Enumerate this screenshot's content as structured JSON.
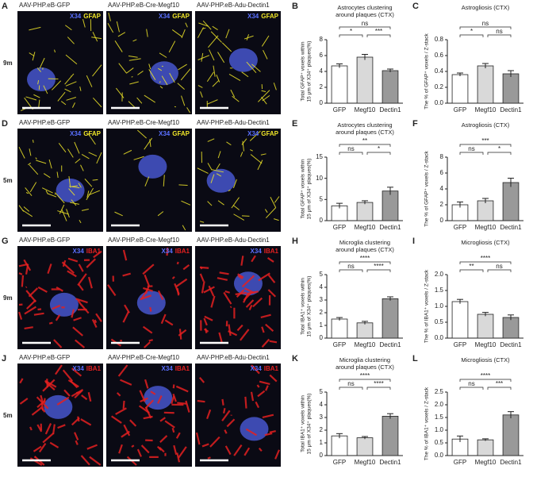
{
  "images": {
    "rows": [
      {
        "letter": "A",
        "age": "9m",
        "marker": "X34",
        "stain": "GFAP",
        "labels": [
          "AAV-PHP.eB-GFP",
          "AAV-PHP.eB-Cre-Megf10",
          "AAV-PHP.eB-Adu-Dectin1"
        ]
      },
      {
        "letter": "D",
        "age": "5m",
        "marker": "X34",
        "stain": "GFAP",
        "labels": [
          "AAV-PHP.eB-GFP",
          "AAV-PHP.eB-Cre-Megf10",
          "AAV-PHP.eB-Adu-Dectin1"
        ]
      },
      {
        "letter": "G",
        "age": "9m",
        "marker": "X34",
        "stain": "IBA1",
        "labels": [
          "AAV-PHP.eB-GFP",
          "AAV-PHP.eB-Cre-Megf10",
          "AAV-PHP.eB-Adu-Dectin1"
        ]
      },
      {
        "letter": "J",
        "age": "5m",
        "marker": "X34",
        "stain": "IBA1",
        "labels": [
          "AAV-PHP.eB-GFP",
          "AAV-PHP.eB-Cre-Megf10",
          "AAV-PHP.eB-Adu-Dectin1"
        ]
      }
    ]
  },
  "chart_data": [
    {
      "type": "bar",
      "letter": "B",
      "title": [
        "Astrocytes clustering",
        "around plaques (CTX)"
      ],
      "ylabel": [
        "Total GFAP⁺ voxels within",
        "15 μm of X34⁺ plaques(%)"
      ],
      "categories": [
        "GFP",
        "Megf10",
        "Dectin1"
      ],
      "values": [
        4.7,
        5.8,
        4.1
      ],
      "errors": [
        0.25,
        0.35,
        0.2
      ],
      "colors": [
        "#ffffff",
        "#d9d9d9",
        "#999999"
      ],
      "ylim": [
        0,
        8
      ],
      "yticks": [
        0,
        2,
        4,
        6,
        8
      ],
      "annotations": [
        "ns",
        "*",
        "***"
      ]
    },
    {
      "type": "bar",
      "letter": "C",
      "title": [
        "Astrogliosis (CTX)"
      ],
      "ylabel": [
        "The % of GFAP⁺ voxels / Z-stack"
      ],
      "categories": [
        "GFP",
        "Megf10",
        "Dectin1"
      ],
      "values": [
        0.36,
        0.47,
        0.37
      ],
      "errors": [
        0.02,
        0.03,
        0.04
      ],
      "colors": [
        "#ffffff",
        "#d9d9d9",
        "#999999"
      ],
      "ylim": [
        0,
        0.8
      ],
      "yticks": [
        {
          "value": 0,
          "label": "0.0"
        },
        0.2,
        0.4,
        0.6,
        0.8
      ],
      "annotations": [
        "ns",
        "*",
        "ns"
      ]
    },
    {
      "type": "bar",
      "letter": "E",
      "title": [
        "Astrocytes clustering",
        "around plaques (CTX)"
      ],
      "ylabel": [
        "Total GFAP⁺ voxels within",
        "15 μm of X34⁺ plaques(%)"
      ],
      "categories": [
        "GFP",
        "Megf10",
        "Dectin1"
      ],
      "values": [
        3.5,
        4.3,
        7.0
      ],
      "errors": [
        0.6,
        0.4,
        0.9
      ],
      "colors": [
        "#ffffff",
        "#d9d9d9",
        "#999999"
      ],
      "ylim": [
        0,
        15
      ],
      "yticks": [
        0,
        5,
        10,
        15
      ],
      "annotations": [
        "**",
        "ns",
        "*"
      ]
    },
    {
      "type": "bar",
      "letter": "F",
      "title": [
        "Astrogliosis (CTX)"
      ],
      "ylabel": [
        "The % of GFAP⁺ voxels / Z-stack"
      ],
      "categories": [
        "GFP",
        "Megf10",
        "Dectin1"
      ],
      "values": [
        2.0,
        2.5,
        4.8
      ],
      "errors": [
        0.35,
        0.3,
        0.55
      ],
      "colors": [
        "#ffffff",
        "#d9d9d9",
        "#999999"
      ],
      "ylim": [
        0,
        8
      ],
      "yticks": [
        0,
        2,
        4,
        6,
        8
      ],
      "annotations": [
        "***",
        "ns",
        "*"
      ]
    },
    {
      "type": "bar",
      "letter": "H",
      "title": [
        "Microglia clustering",
        "around plaques (CTX)"
      ],
      "ylabel": [
        "Total IBA1⁺ voxels within",
        "15 μm of X34⁺ plaques(%)"
      ],
      "categories": [
        "GFP",
        "Megf10",
        "Dectin1"
      ],
      "values": [
        1.5,
        1.2,
        3.1
      ],
      "errors": [
        0.12,
        0.12,
        0.15
      ],
      "colors": [
        "#ffffff",
        "#d9d9d9",
        "#999999"
      ],
      "ylim": [
        0,
        5
      ],
      "yticks": [
        0,
        1,
        2,
        3,
        4,
        5
      ],
      "annotations": [
        "****",
        "ns",
        "****"
      ]
    },
    {
      "type": "bar",
      "letter": "I",
      "title": [
        "Microgliosis (CTX)"
      ],
      "ylabel": [
        "The % of IBA1⁺ voxels / Z-stack"
      ],
      "categories": [
        "GFP",
        "Megf10",
        "Dectin1"
      ],
      "values": [
        1.15,
        0.75,
        0.65
      ],
      "errors": [
        0.07,
        0.06,
        0.08
      ],
      "colors": [
        "#ffffff",
        "#d9d9d9",
        "#999999"
      ],
      "ylim": [
        0,
        2
      ],
      "yticks": [
        {
          "value": 0,
          "label": "0.0"
        },
        0.5,
        {
          "value": 1,
          "label": "1.0"
        },
        1.5,
        {
          "value": 2,
          "label": "2.0"
        }
      ],
      "annotations": [
        "****",
        "**",
        "ns"
      ]
    },
    {
      "type": "bar",
      "letter": "K",
      "title": [
        "Microglia clustering",
        "around plaques (CTX)"
      ],
      "ylabel": [
        "Total IBA1⁺ voxels within",
        "15 μm of X34⁺ plaques(%)"
      ],
      "categories": [
        "GFP",
        "Megf10",
        "Dectin1"
      ],
      "values": [
        1.55,
        1.4,
        3.1
      ],
      "errors": [
        0.18,
        0.1,
        0.2
      ],
      "colors": [
        "#ffffff",
        "#d9d9d9",
        "#999999"
      ],
      "ylim": [
        0,
        5
      ],
      "yticks": [
        0,
        1,
        2,
        3,
        4,
        5
      ],
      "annotations": [
        "****",
        "ns",
        "****"
      ]
    },
    {
      "type": "bar",
      "letter": "L",
      "title": [
        "Microgliosis (CTX)"
      ],
      "ylabel": [
        "The % of IBA1⁺ voxels / Z-stack"
      ],
      "categories": [
        "GFP",
        "Megf10",
        "Dectin1"
      ],
      "values": [
        0.65,
        0.62,
        1.6
      ],
      "errors": [
        0.12,
        0.04,
        0.13
      ],
      "colors": [
        "#ffffff",
        "#d9d9d9",
        "#999999"
      ],
      "ylim": [
        0,
        2.5
      ],
      "yticks": [
        {
          "value": 0,
          "label": "0.0"
        },
        0.5,
        {
          "value": 1,
          "label": "1.0"
        },
        1.5,
        {
          "value": 2,
          "label": "2.0"
        },
        2.5
      ],
      "annotations": [
        "****",
        "ns",
        "***"
      ]
    }
  ]
}
